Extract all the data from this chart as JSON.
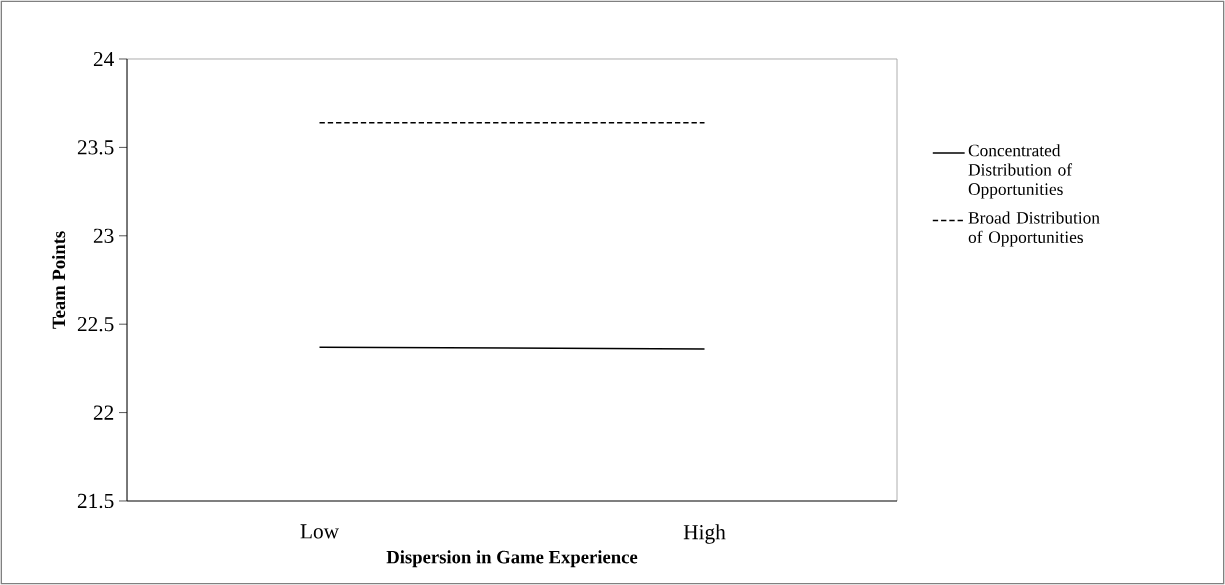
{
  "chart_data": {
    "type": "line",
    "xlabel": "Dispersion in Game Experience",
    "ylabel": "Team Points",
    "categories": [
      "Low",
      "High"
    ],
    "series": [
      {
        "name": "Concentrated Distribution of Opportunities",
        "color": "#000000",
        "line_style": "solid",
        "values": [
          22.37,
          22.36
        ]
      },
      {
        "name": "Broad Distribution of Opportunities",
        "color": "#000000",
        "line_style": "dashed",
        "values": [
          23.64,
          23.64
        ]
      }
    ],
    "ylim": [
      21.5,
      24
    ],
    "yticks": [
      21.5,
      22,
      22.5,
      23,
      23.5,
      24
    ],
    "grid": false,
    "legend": "right",
    "marker": "none"
  }
}
